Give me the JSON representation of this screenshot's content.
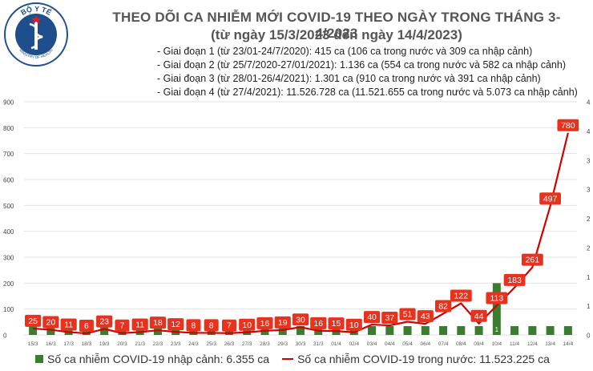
{
  "header": {
    "title": "THEO DÕI CA NHIỄM MỚI COVID-19 THEO NGÀY TRONG THÁNG 3-4/2023",
    "subtitle": "(từ ngày 15/3/2023 đến ngày 14/4/2023)"
  },
  "logo": {
    "text": "BỘ Y TẾ",
    "sub": "MINISTRY OF HEALTH"
  },
  "phases": [
    "Giai đoạn 1 (từ 23/01-24/7/2020): 415 ca (106 ca trong nước và 309 ca nhập cảnh)",
    "Giai đoạn 2 (từ 25/7/2020-27/01/2021): 1.136 ca (554 ca trong nước và 582 ca nhập cảnh)",
    "Giai đoạn 3 (từ 28/01-26/4/2021): 1.301 ca (910 ca trong nước và 391 ca nhập cảnh)",
    "Giai đoạn 4 (từ 27/4/2021): 11.526.728 ca (11.521.655 ca trong nước và 5.073 ca nhập cảnh)"
  ],
  "legend": {
    "bar_label": "Số ca nhiễm COVID-19 nhập cảnh: 6.355 ca",
    "line_label": "Số ca nhiễm COVID-19 trong nước: 11.523.225 ca"
  },
  "chart_data": {
    "type": "bar+line",
    "categories": [
      "15/3",
      "16/3",
      "17/3",
      "18/3",
      "19/3",
      "20/3",
      "21/3",
      "22/3",
      "23/3",
      "24/3",
      "25/3",
      "26/3",
      "27/3",
      "28/3",
      "29/3",
      "30/3",
      "31/3",
      "01/4",
      "02/4",
      "03/4",
      "04/4",
      "05/4",
      "06/4",
      "07/4",
      "08/4",
      "09/4",
      "10/4",
      "11/4",
      "12/4",
      "13/4",
      "14/4"
    ],
    "series": [
      {
        "kind": "line",
        "axis": "left",
        "color": "#d40000",
        "values": [
          25,
          20,
          11,
          6,
          23,
          7,
          11,
          18,
          12,
          8,
          8,
          7,
          10,
          16,
          19,
          30,
          16,
          15,
          10,
          40,
          37,
          51,
          43,
          82,
          122,
          44,
          113,
          183,
          261,
          497,
          780
        ]
      },
      {
        "kind": "bar",
        "axis": "right",
        "color": "#3a7d2e",
        "values": [
          0,
          0,
          0,
          0,
          0,
          0,
          0,
          0,
          0,
          0,
          0,
          0,
          0,
          0,
          0,
          0,
          0,
          0,
          0,
          0,
          0,
          0,
          0,
          0,
          0,
          0,
          1,
          0,
          0,
          0,
          0
        ]
      }
    ],
    "bar_value_labels": [
      "",
      "",
      "",
      "",
      "",
      "",
      "",
      "",
      "",
      "",
      "",
      "",
      "",
      "",
      "",
      "",
      "",
      "",
      "",
      "",
      "",
      "",
      "",
      "",
      "",
      "",
      "1",
      "",
      "",
      "",
      ""
    ],
    "left_axis": {
      "ticks": [
        "0",
        "100",
        "200",
        "300",
        "400",
        "500",
        "600",
        "700",
        "800",
        "900"
      ],
      "ylim": [
        0,
        900
      ]
    },
    "right_axis": {
      "ticks": [
        "0",
        "1",
        "1",
        "2",
        "2",
        "3",
        "3",
        "4",
        "4"
      ],
      "ylim": [
        0,
        4.5
      ]
    },
    "colors": {
      "bar": "#3a7d2e",
      "line": "#d40000",
      "label_bg": "#e8321e",
      "grid": "#e2e2e2"
    },
    "grid": true
  }
}
